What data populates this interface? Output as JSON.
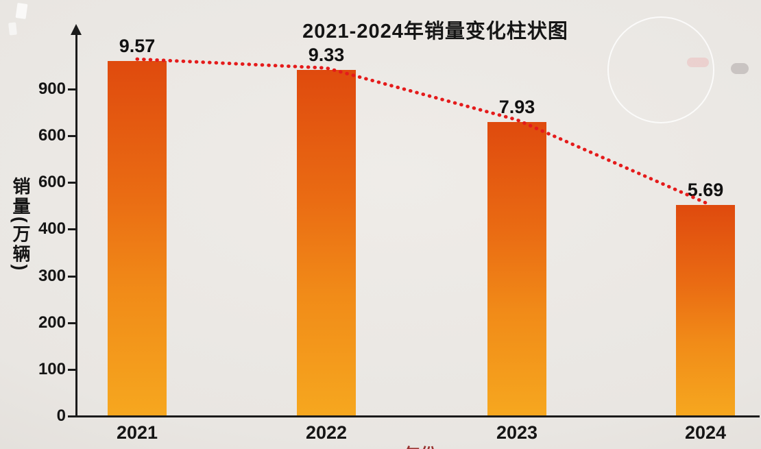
{
  "chart_data": {
    "type": "bar",
    "title": "2021-2024年销量变化柱状图",
    "categories": [
      "2021",
      "2022",
      "2023",
      "2024"
    ],
    "values": [
      9.57,
      9.33,
      7.93,
      5.69
    ],
    "value_labels": [
      "9.57",
      "9.33",
      "7.93",
      "5.69"
    ],
    "xlabel": "年份",
    "ylabel": "销量(万辆)",
    "y_tick_labels": [
      "900",
      "600",
      "600",
      "400",
      "300",
      "200",
      "100",
      "0"
    ],
    "grid": false,
    "legend": "none",
    "trend_line": {
      "style": "dotted",
      "color": "#e41b1b",
      "follows": "bar tops"
    },
    "bar_gradient": {
      "top": "#df4a0e",
      "bottom": "#f6a71f"
    },
    "axis_color": "#1b1b1b",
    "background_color": "#e9e6e2"
  }
}
